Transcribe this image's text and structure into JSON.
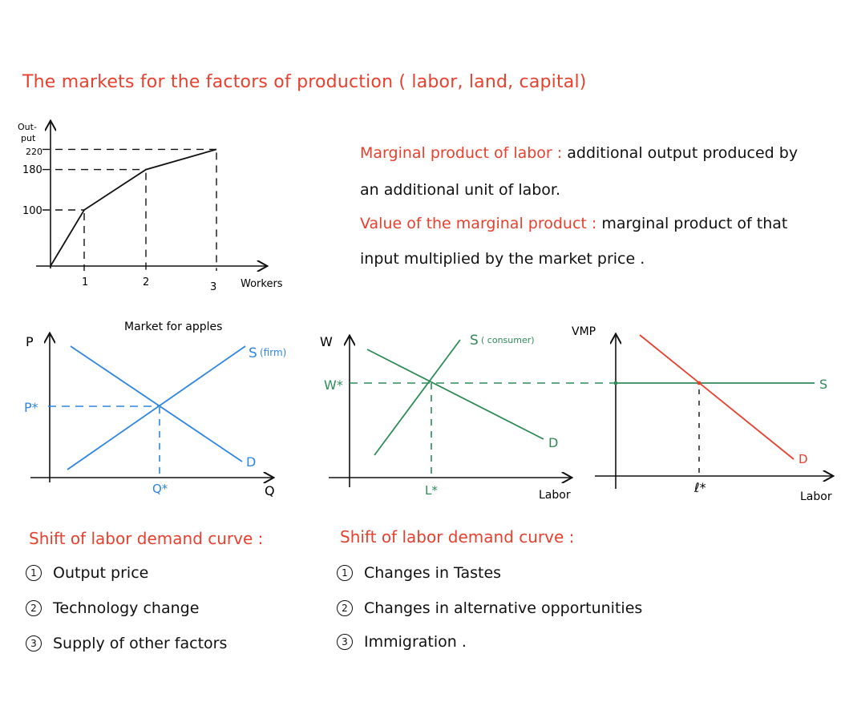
{
  "title": "The markets for the factors of production ( labor, land, capital)",
  "definitions": {
    "mpl_term": "Marginal product of labor",
    "mpl_colon": " : ",
    "mpl_text": "additional output produced by",
    "mpl_text2": "an additional unit of labor.",
    "vmp_term": "Value of the marginal product",
    "vmp_colon": " : ",
    "vmp_text": "marginal product of that",
    "vmp_text2": "input multiplied by the market price ."
  },
  "production_graph": {
    "y_label_1": "Out-",
    "y_label_2": "put",
    "x_label": "Workers",
    "y_ticks": [
      "220",
      "180",
      "100"
    ],
    "x_ticks": [
      "1",
      "2",
      "3"
    ]
  },
  "apples_graph": {
    "title": "Market for apples",
    "y_label": "P",
    "x_label": "Q",
    "supply_label": "S",
    "supply_note": "(firm)",
    "demand_label": "D",
    "p_eq": "P*",
    "q_eq": "Q*"
  },
  "labor_graph": {
    "y_label": "W",
    "x_label": "Labor",
    "supply_label": "S",
    "supply_note": "( consumer)",
    "demand_label": "D",
    "w_eq": "W*",
    "l_eq": "L*"
  },
  "vmp_graph": {
    "y_label": "VMP",
    "x_label": "Labor",
    "supply_label": "S",
    "demand_label": "D",
    "l_eq": "ℓ*"
  },
  "left_list": {
    "heading": "Shift of labor demand curve :",
    "items": [
      {
        "n": "1",
        "text": "Output price"
      },
      {
        "n": "2",
        "text": "Technology change"
      },
      {
        "n": "3",
        "text": "Supply of other factors"
      }
    ]
  },
  "right_list": {
    "heading": "Shift of labor demand curve :",
    "items": [
      {
        "n": "1",
        "text": "Changes in Tastes"
      },
      {
        "n": "2",
        "text": "Changes in alternative opportunities"
      },
      {
        "n": "3",
        "text": "Immigration ."
      }
    ]
  },
  "colors": {
    "red": "#e8402f",
    "blue": "#2f86e0",
    "green": "#2e8b57",
    "black": "#111111"
  },
  "chart_data": [
    {
      "type": "line",
      "title": "",
      "xlabel": "Workers",
      "ylabel": "Out-put",
      "x": [
        0,
        1,
        2,
        3
      ],
      "y": [
        0,
        100,
        180,
        220
      ],
      "xlim": [
        0,
        3.5
      ],
      "ylim": [
        0,
        240
      ]
    }
  ]
}
